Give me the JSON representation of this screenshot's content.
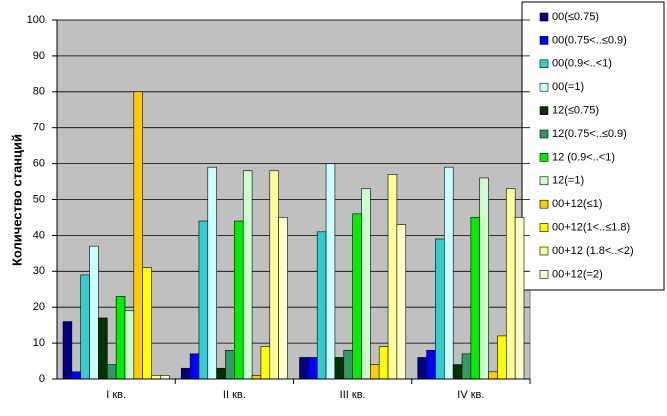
{
  "chart_data": {
    "type": "bar",
    "y_label": "Количество станций",
    "categories": [
      "I кв.",
      "II кв.",
      "III кв.",
      "IV кв."
    ],
    "ylim": [
      0,
      100
    ],
    "yticks": [
      0,
      10,
      20,
      30,
      40,
      50,
      60,
      70,
      80,
      90,
      100
    ],
    "grid": true,
    "series": [
      {
        "name": "00(≤0.75)",
        "color": "#000080",
        "values": [
          16,
          3,
          6,
          6
        ]
      },
      {
        "name": "00(0.75<..≤0.9)",
        "color": "#0000ff",
        "values": [
          2,
          7,
          6,
          8
        ]
      },
      {
        "name": "00(0.9<..<1)",
        "color": "#33cccc",
        "values": [
          29,
          44,
          41,
          39
        ]
      },
      {
        "name": "00(=1)",
        "color": "#ccffff",
        "values": [
          37,
          59,
          60,
          59
        ]
      },
      {
        "name": "12(≤0.75)",
        "color": "#003300",
        "values": [
          17,
          3,
          6,
          4
        ]
      },
      {
        "name": "12(0.75<..≤0.9)",
        "color": "#339966",
        "values": [
          4,
          8,
          8,
          7
        ]
      },
      {
        "name": "12 (0.9<..<1)",
        "color": "#00ee00",
        "values": [
          23,
          44,
          46,
          45
        ]
      },
      {
        "name": "12(=1)",
        "color": "#ccffcc",
        "values": [
          19,
          58,
          53,
          56
        ]
      },
      {
        "name": "00+12(≤1)",
        "color": "#ffcc00",
        "values": [
          80,
          1,
          4,
          2
        ]
      },
      {
        "name": "00+12(1<..≤1.8)",
        "color": "#ffff00",
        "values": [
          31,
          9,
          9,
          12
        ]
      },
      {
        "name": "00+12 (1.8<..<2)",
        "color": "#ffff99",
        "values": [
          1,
          58,
          57,
          53
        ]
      },
      {
        "name": "00+12(=2)",
        "color": "#ffffcc",
        "values": [
          1,
          45,
          43,
          45
        ]
      }
    ]
  }
}
